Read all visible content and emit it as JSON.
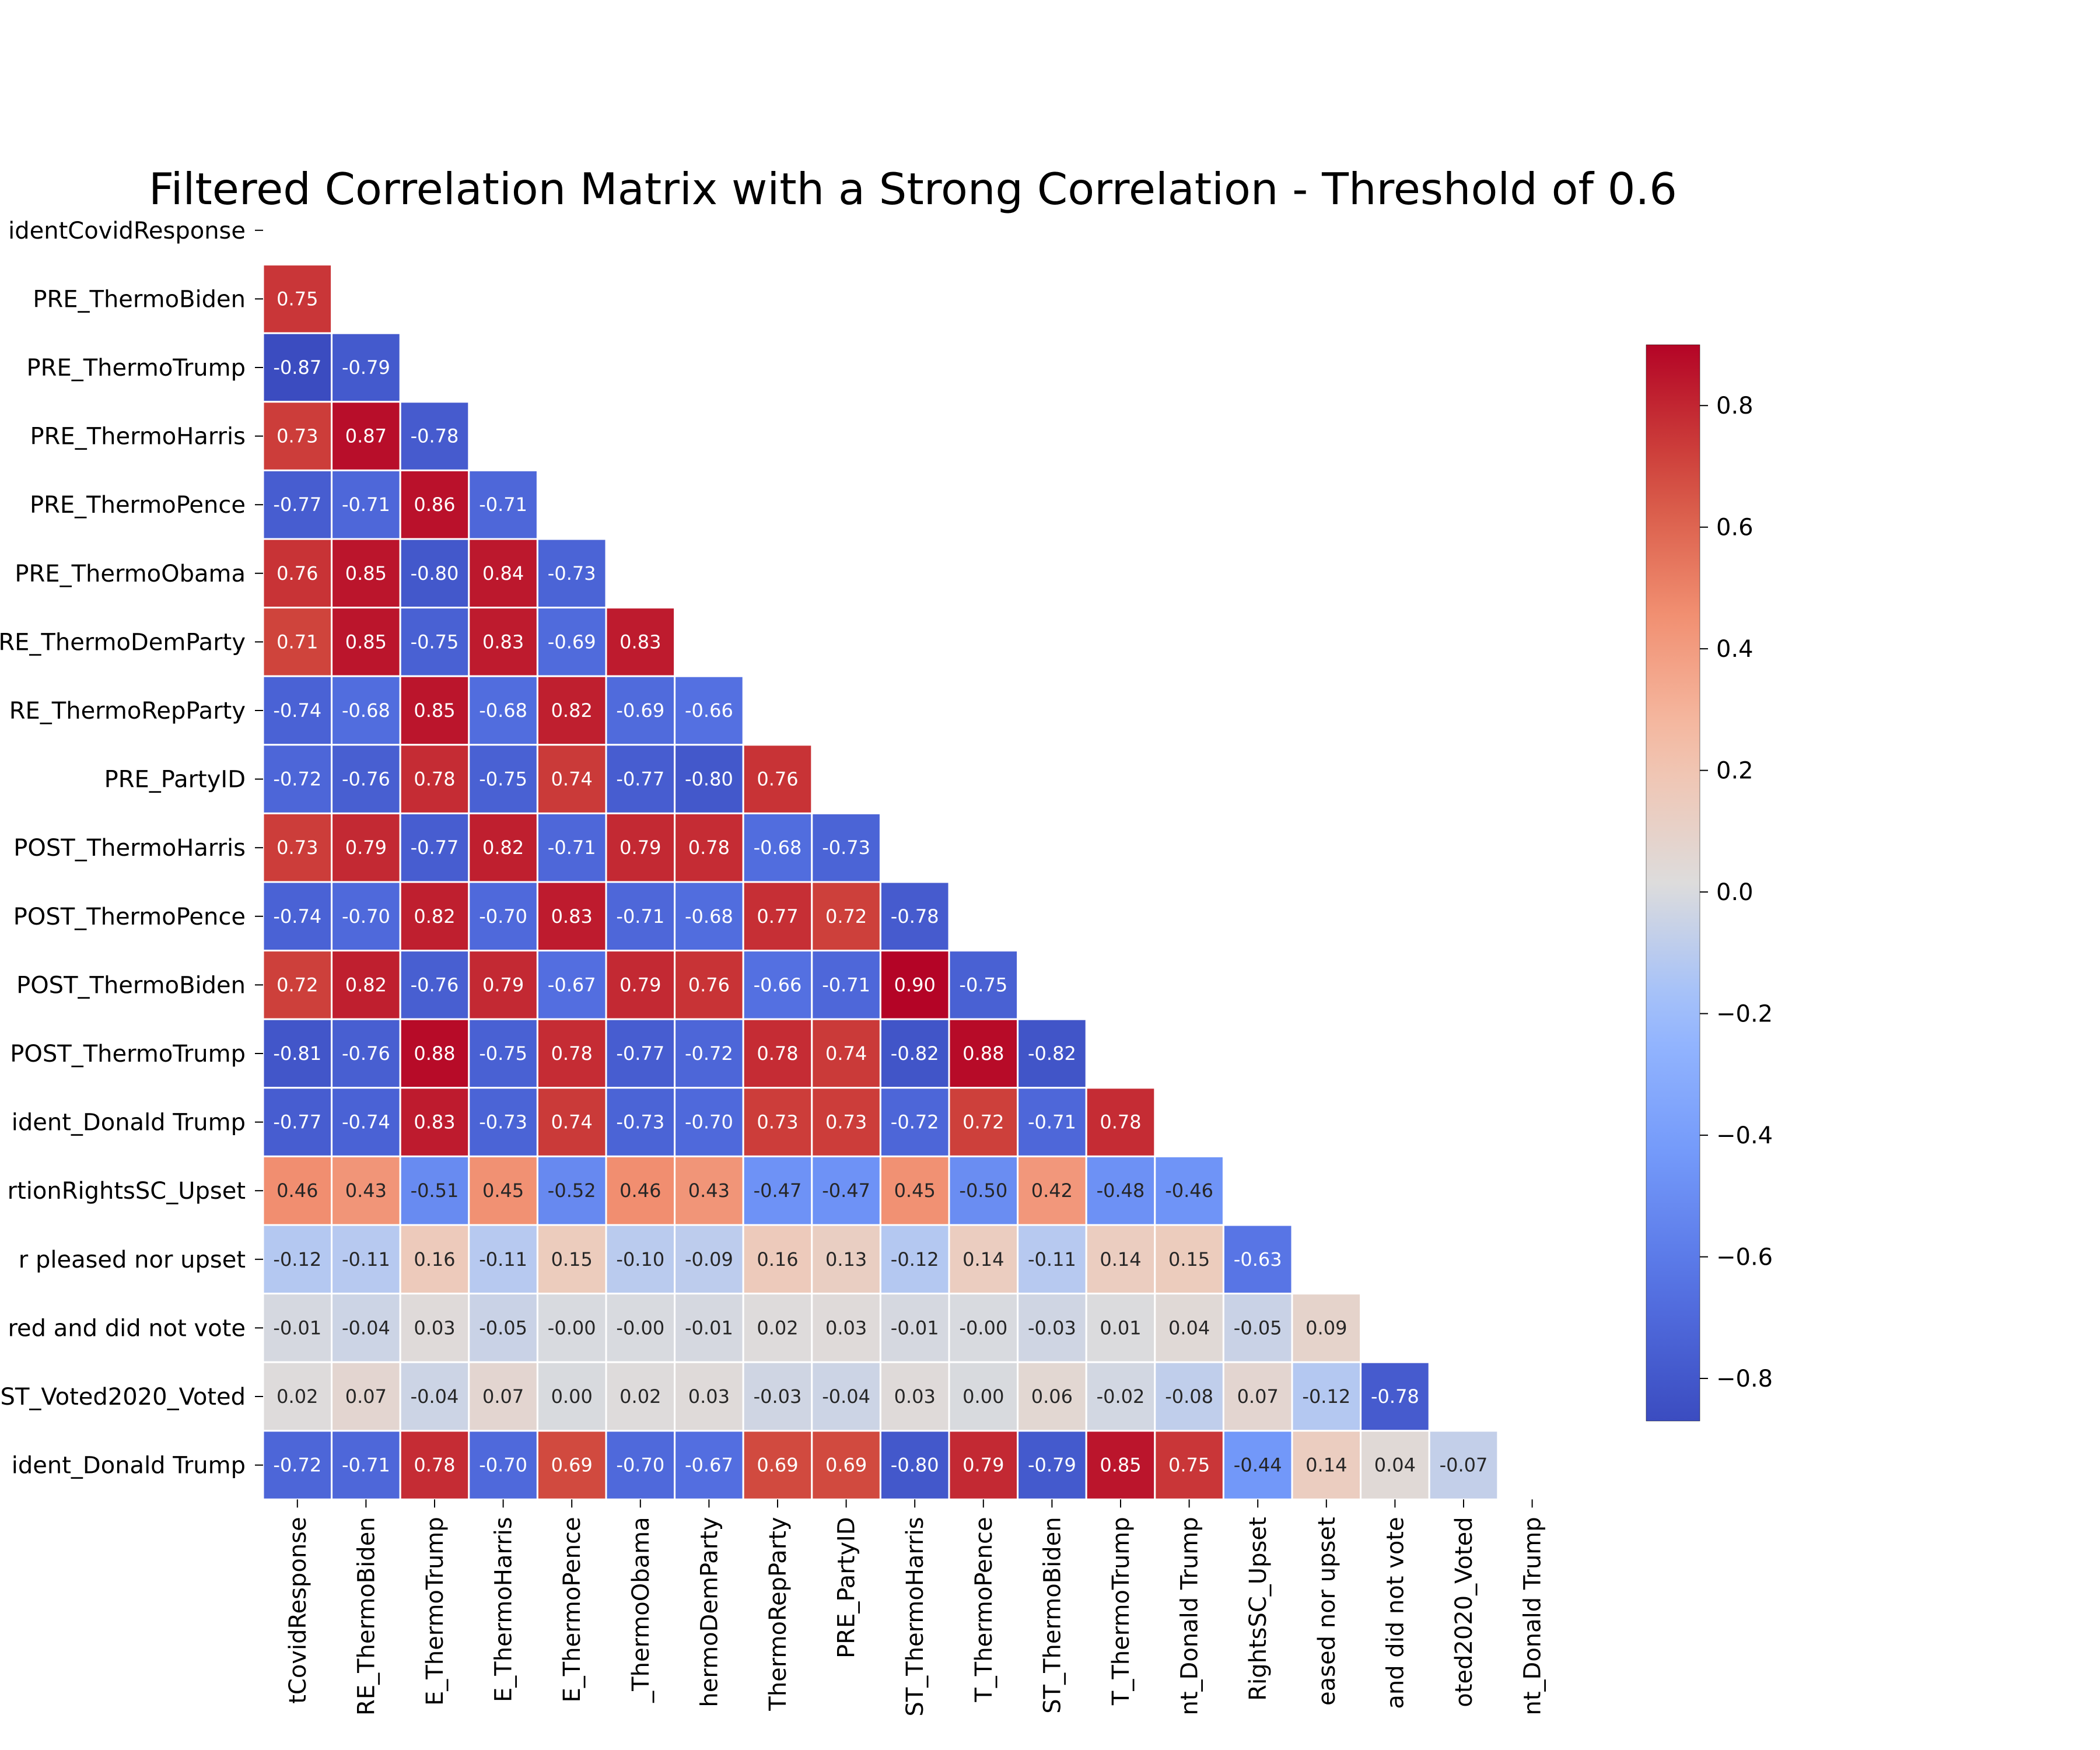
{
  "chart_data": {
    "type": "heatmap",
    "title": "Filtered Correlation Matrix with a Strong Correlation - Threshold of 0.6",
    "mask": "upper-triangle",
    "row_labels": [
      "identCovidResponse",
      "PRE_ThermoBiden",
      "PRE_ThermoTrump",
      "PRE_ThermoHarris",
      "PRE_ThermoPence",
      "PRE_ThermoObama",
      "RE_ThermoDemParty",
      "RE_ThermoRepParty",
      "PRE_PartyID",
      "POST_ThermoHarris",
      "POST_ThermoPence",
      "POST_ThermoBiden",
      "POST_ThermoTrump",
      "ident_Donald Trump",
      "rtionRightsSC_Upset",
      "r pleased nor upset",
      "red and did not vote",
      "ST_Voted2020_Voted",
      "ident_Donald Trump"
    ],
    "col_labels": [
      "tCovidResponse",
      "RE_ThermoBiden",
      "E_ThermoTrump",
      "E_ThermoHarris",
      "E_ThermoPence",
      "_ThermoObama",
      "hermoDemParty",
      "ThermoRepParty",
      "PRE_PartyID",
      "ST_ThermoHarris",
      "T_ThermoPence",
      "ST_ThermoBiden",
      "T_ThermoTrump",
      "nt_Donald Trump",
      "RightsSC_Upset",
      "eased nor upset",
      "and did not vote",
      "oted2020_Voted",
      "nt_Donald Trump"
    ],
    "values": [
      [],
      [
        0.75
      ],
      [
        -0.87,
        -0.79
      ],
      [
        0.73,
        0.87,
        -0.78
      ],
      [
        -0.77,
        -0.71,
        0.86,
        -0.71
      ],
      [
        0.76,
        0.85,
        -0.8,
        0.84,
        -0.73
      ],
      [
        0.71,
        0.85,
        -0.75,
        0.83,
        -0.69,
        0.83
      ],
      [
        -0.74,
        -0.68,
        0.85,
        -0.68,
        0.82,
        -0.69,
        -0.66
      ],
      [
        -0.72,
        -0.76,
        0.78,
        -0.75,
        0.74,
        -0.77,
        -0.8,
        0.76
      ],
      [
        0.73,
        0.79,
        -0.77,
        0.82,
        -0.71,
        0.79,
        0.78,
        -0.68,
        -0.73
      ],
      [
        -0.74,
        -0.7,
        0.82,
        -0.7,
        0.83,
        -0.71,
        -0.68,
        0.77,
        0.72,
        -0.78
      ],
      [
        0.72,
        0.82,
        -0.76,
        0.79,
        -0.67,
        0.79,
        0.76,
        -0.66,
        -0.71,
        0.9,
        -0.75
      ],
      [
        -0.81,
        -0.76,
        0.88,
        -0.75,
        0.78,
        -0.77,
        -0.72,
        0.78,
        0.74,
        -0.82,
        0.88,
        -0.82
      ],
      [
        -0.77,
        -0.74,
        0.83,
        -0.73,
        0.74,
        -0.73,
        -0.7,
        0.73,
        0.73,
        -0.72,
        0.72,
        -0.71,
        0.78
      ],
      [
        0.46,
        0.43,
        -0.51,
        0.45,
        -0.52,
        0.46,
        0.43,
        -0.47,
        -0.47,
        0.45,
        -0.5,
        0.42,
        -0.48,
        -0.46
      ],
      [
        -0.12,
        -0.11,
        0.16,
        -0.11,
        0.15,
        -0.1,
        -0.09,
        0.16,
        0.13,
        -0.12,
        0.14,
        -0.11,
        0.14,
        0.15,
        -0.63
      ],
      [
        -0.01,
        -0.04,
        0.03,
        -0.05,
        -0.001,
        -0.001,
        -0.01,
        0.02,
        0.03,
        -0.01,
        -0.001,
        -0.03,
        0.01,
        0.04,
        -0.05,
        0.09
      ],
      [
        0.02,
        0.07,
        -0.04,
        0.07,
        0.0,
        0.02,
        0.03,
        -0.03,
        -0.04,
        0.03,
        0.0,
        0.06,
        -0.02,
        -0.08,
        0.07,
        -0.12,
        -0.78
      ],
      [
        -0.72,
        -0.71,
        0.78,
        -0.7,
        0.69,
        -0.7,
        -0.67,
        0.69,
        0.69,
        -0.8,
        0.79,
        -0.79,
        0.85,
        0.75,
        -0.44,
        0.14,
        0.04,
        -0.07
      ]
    ],
    "value_format": "2 decimals",
    "colormap": "coolwarm",
    "vmin": -0.87,
    "vmax": 0.9,
    "colorbar_ticks": [
      0.8,
      0.6,
      0.4,
      0.2,
      0.0,
      -0.2,
      -0.4,
      -0.6,
      -0.8
    ],
    "colorbar_tick_labels": [
      "0.8",
      "0.6",
      "0.4",
      "0.2",
      "0.0",
      "−0.2",
      "−0.4",
      "−0.6",
      "−0.8"
    ],
    "colorbar_placement": "right",
    "colors": {
      "low": "#3b4cc0",
      "mid": "#dddddd",
      "high": "#b40426"
    }
  }
}
